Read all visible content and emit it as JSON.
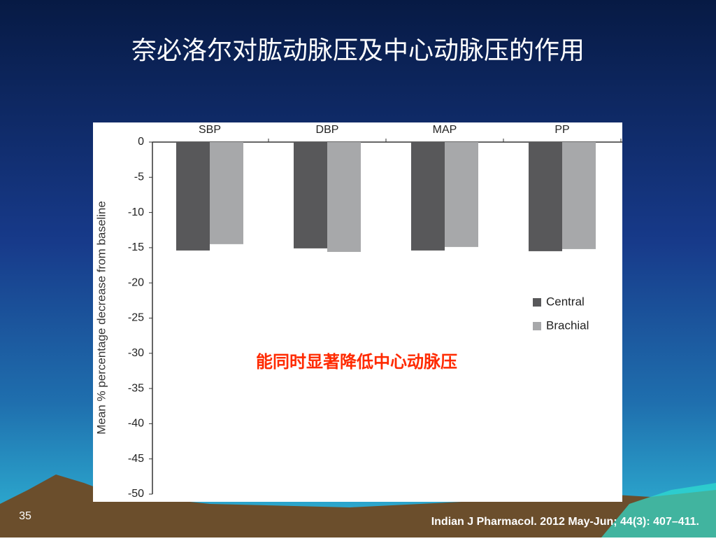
{
  "slide": {
    "title": "奈必洛尔对肱动脉压及中心动脉压的作用",
    "page_number": "35",
    "citation": "Indian J Pharmacol. 2012 May-Jun; 44(3): 407–411."
  },
  "chart_data": {
    "type": "bar",
    "ylabel": "Mean % percentage decrease from baseline",
    "annotation": "能同时显著降低中心动脉压",
    "categories": [
      "SBP",
      "DBP",
      "MAP",
      "PP"
    ],
    "series": [
      {
        "name": "Central",
        "color": "#58585a",
        "values": [
          -15.4,
          -15.1,
          -15.4,
          -15.5
        ]
      },
      {
        "name": "Brachial",
        "color": "#a7a8aa",
        "values": [
          -14.5,
          -15.6,
          -14.9,
          -15.2
        ]
      }
    ],
    "ylim": [
      -50,
      0
    ],
    "yticks": [
      0,
      -5,
      -10,
      -15,
      -20,
      -25,
      -30,
      -35,
      -40,
      -45,
      -50
    ]
  }
}
